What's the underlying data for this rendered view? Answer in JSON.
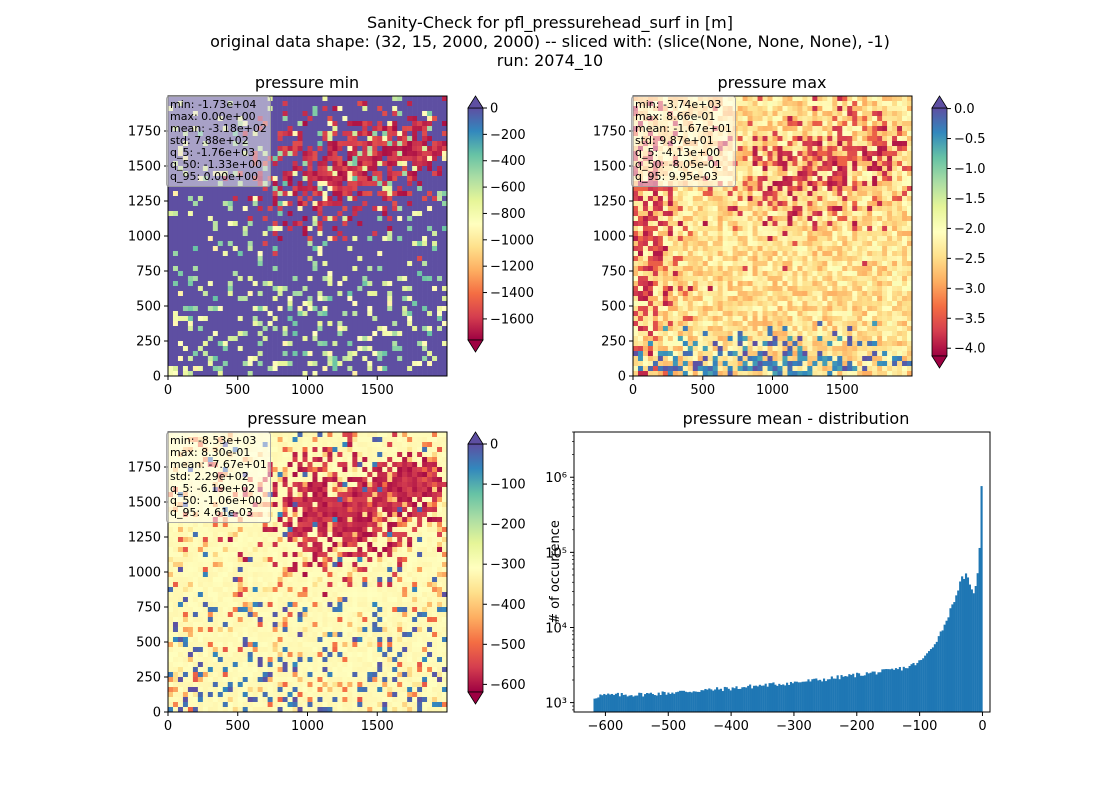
{
  "suptitle": {
    "line1": "Sanity-Check for pfl_pressurehead_surf in [m]",
    "line2": "original data shape: (32, 15, 2000, 2000) -- sliced with: (slice(None, None, None), -1)",
    "line3": "run: 2074_10"
  },
  "colors": {
    "spectral_stops": [
      "#9e0142",
      "#d53e4f",
      "#f46d43",
      "#fdae61",
      "#fee08b",
      "#ffffbf",
      "#e6f598",
      "#abdda4",
      "#66c2a5",
      "#3288bd",
      "#5e4fa2"
    ],
    "hist_bar": "#1f77b4"
  },
  "panels": {
    "min": {
      "title": "pressure min",
      "stats": [
        "min: -1.73e+04",
        "max: 0.00e+00",
        "mean: -3.18e+02",
        "std: 7.88e+02",
        "q_5: -1.76e+03",
        "q_50: -1.33e+00",
        "q_95: 0.00e+00"
      ]
    },
    "max": {
      "title": "pressure max",
      "stats": [
        "min: -3.74e+03",
        "max: 8.66e-01",
        "mean: -1.67e+01",
        "std: 9.87e+01",
        "q_5: -4.13e+00",
        "q_50: -8.05e-01",
        "q_95: 9.95e-03"
      ]
    },
    "mean": {
      "title": "pressure mean",
      "stats": [
        "min: -8.53e+03",
        "max: 8.30e-01",
        "mean: -7.67e+01",
        "std: 2.29e+02",
        "q_5: -6.19e+02",
        "q_50: -1.06e+00",
        "q_95: 4.61e-03"
      ]
    }
  },
  "chart_data": [
    {
      "type": "heatmap",
      "title": "pressure min",
      "x_ticks": [
        0,
        500,
        1000,
        1500
      ],
      "y_ticks": [
        0,
        250,
        500,
        750,
        1000,
        1250,
        1500,
        1750
      ],
      "xlim": [
        0,
        2000
      ],
      "ylim": [
        0,
        2000
      ],
      "colormap": "Spectral",
      "colorbar": {
        "range": [
          -1760,
          0
        ],
        "ticks": [
          "0",
          "−200",
          "−400",
          "−600",
          "−800",
          "−1000",
          "−1200",
          "−1400",
          "−1600"
        ],
        "extend": "both"
      }
    },
    {
      "type": "heatmap",
      "title": "pressure max",
      "x_ticks": [
        0,
        500,
        1000,
        1500
      ],
      "y_ticks": [
        0,
        250,
        500,
        750,
        1000,
        1250,
        1500,
        1750
      ],
      "xlim": [
        0,
        2000
      ],
      "ylim": [
        0,
        2000
      ],
      "colormap": "Spectral",
      "colorbar": {
        "range": [
          -4.13,
          0.00995
        ],
        "ticks": [
          "0.0",
          "−0.5",
          "−1.0",
          "−1.5",
          "−2.0",
          "−2.5",
          "−3.0",
          "−3.5",
          "−4.0"
        ],
        "extend": "both"
      }
    },
    {
      "type": "heatmap",
      "title": "pressure mean",
      "x_ticks": [
        0,
        500,
        1000,
        1500
      ],
      "y_ticks": [
        0,
        250,
        500,
        750,
        1000,
        1250,
        1500,
        1750
      ],
      "xlim": [
        0,
        2000
      ],
      "ylim": [
        0,
        2000
      ],
      "colormap": "Spectral",
      "colorbar": {
        "range": [
          -619,
          0.0046
        ],
        "ticks": [
          "0",
          "−100",
          "−200",
          "−300",
          "−400",
          "−500",
          "−600"
        ],
        "extend": "both"
      }
    },
    {
      "type": "bar",
      "title": "pressure mean - distribution",
      "xlabel": "",
      "ylabel": "# of occurrence",
      "xlim": [
        -650,
        12
      ],
      "x_ticks": [
        "−600",
        "−500",
        "−400",
        "−300",
        "−200",
        "−100",
        "0"
      ],
      "y_scale": "log",
      "ylim": [
        750,
        4000000
      ],
      "y_ticks": [
        "10³",
        "10⁴",
        "10⁵",
        "10⁶"
      ],
      "bin_range": [
        -619,
        0
      ],
      "bins": 200,
      "anchors": [
        [
          -619,
          1150
        ],
        [
          -610,
          1250
        ],
        [
          -550,
          1280
        ],
        [
          -500,
          1350
        ],
        [
          -450,
          1450
        ],
        [
          -400,
          1550
        ],
        [
          -350,
          1700
        ],
        [
          -300,
          1850
        ],
        [
          -250,
          2050
        ],
        [
          -200,
          2350
        ],
        [
          -150,
          2650
        ],
        [
          -120,
          2950
        ],
        [
          -100,
          3500
        ],
        [
          -90,
          4200
        ],
        [
          -80,
          5500
        ],
        [
          -70,
          7500
        ],
        [
          -60,
          11000
        ],
        [
          -50,
          18000
        ],
        [
          -40,
          30000
        ],
        [
          -33,
          45000
        ],
        [
          -25,
          50000
        ],
        [
          -20,
          35000
        ],
        [
          -15,
          28000
        ],
        [
          -10,
          40000
        ],
        [
          -6,
          60000
        ],
        [
          -3,
          250000
        ],
        [
          0,
          2500000
        ]
      ]
    }
  ]
}
